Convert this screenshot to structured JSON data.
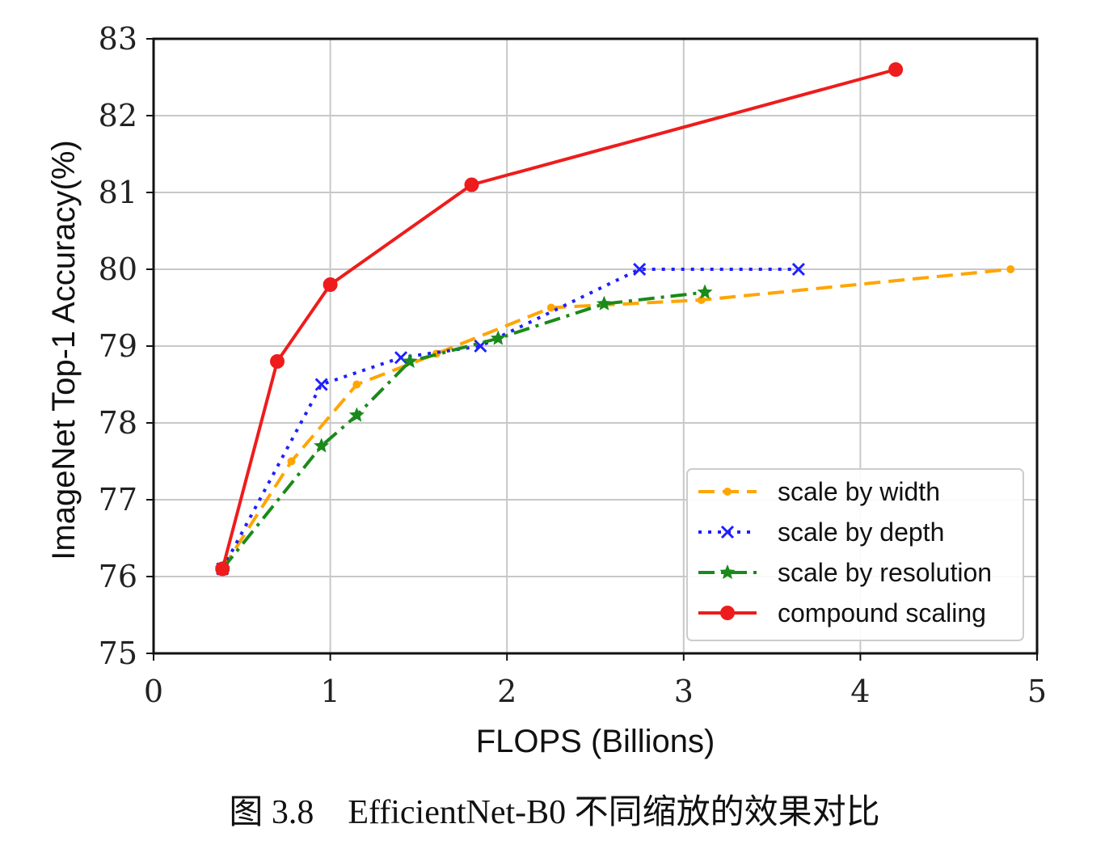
{
  "colors": {
    "width": "#ffa500",
    "depth": "#1f1fff",
    "resolution": "#1a8a1a",
    "compound": "#ee1c1c",
    "grid": "#c8c8c8"
  },
  "caption": "图 3.8    EfficientNet-B0 不同缩放的效果对比",
  "chart_data": {
    "type": "line",
    "title": "",
    "xlabel": "FLOPS (Billions)",
    "ylabel": "ImageNet Top-1 Accuracy(%)",
    "xlim": [
      0,
      5
    ],
    "ylim": [
      75,
      83
    ],
    "xticks": [
      "0",
      "1",
      "2",
      "3",
      "4",
      "5"
    ],
    "yticks": [
      "75",
      "76",
      "77",
      "78",
      "79",
      "80",
      "81",
      "82",
      "83"
    ],
    "grid": true,
    "legend_position": "lower-right",
    "series": [
      {
        "name": "scale by width",
        "style": "dashed",
        "marker": "dot",
        "points": [
          [
            0.39,
            76.1
          ],
          [
            0.78,
            77.5
          ],
          [
            1.15,
            78.5
          ],
          [
            1.6,
            78.9
          ],
          [
            2.25,
            79.5
          ],
          [
            3.1,
            79.6
          ],
          [
            4.85,
            80.0
          ]
        ]
      },
      {
        "name": "scale by depth",
        "style": "dotted",
        "marker": "x",
        "points": [
          [
            0.39,
            76.1
          ],
          [
            0.95,
            78.5
          ],
          [
            1.4,
            78.85
          ],
          [
            1.85,
            79.0
          ],
          [
            2.75,
            80.0
          ],
          [
            3.65,
            80.0
          ]
        ]
      },
      {
        "name": "scale by resolution",
        "style": "dashdot",
        "marker": "star",
        "points": [
          [
            0.39,
            76.1
          ],
          [
            0.95,
            77.7
          ],
          [
            1.15,
            78.1
          ],
          [
            1.45,
            78.8
          ],
          [
            1.95,
            79.1
          ],
          [
            2.55,
            79.55
          ],
          [
            3.12,
            79.7
          ]
        ]
      },
      {
        "name": "compound scaling",
        "style": "solid",
        "marker": "circle",
        "points": [
          [
            0.39,
            76.1
          ],
          [
            0.7,
            78.8
          ],
          [
            1.0,
            79.8
          ],
          [
            1.8,
            81.1
          ],
          [
            4.2,
            82.6
          ]
        ]
      }
    ]
  }
}
